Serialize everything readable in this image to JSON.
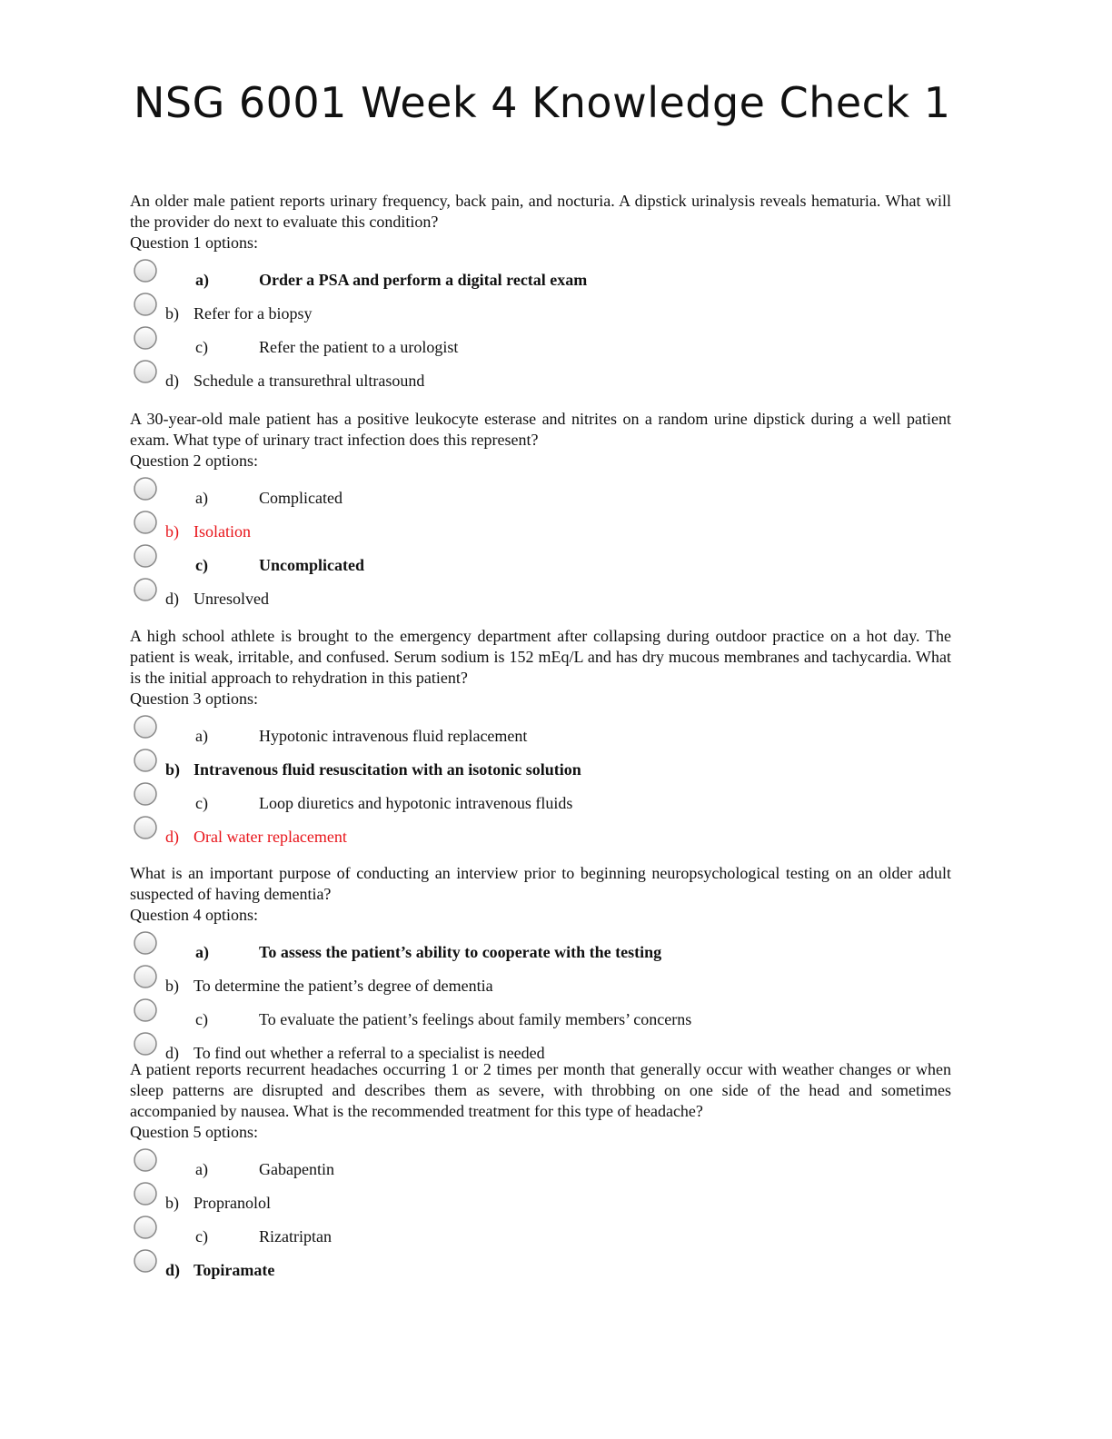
{
  "title": "NSG 6001 Week 4 Knowledge Check 1",
  "questions": [
    {
      "text": "An older male patient reports urinary frequency, back pain, and nocturia. A dipstick urinalysis reveals hematuria. What will the provider do next to evaluate this condition?",
      "options_label": "Question 1 options:",
      "options": [
        {
          "letter": "a)",
          "text": "Order a PSA and perform a digital rectal exam",
          "bold": true
        },
        {
          "letter": "b)",
          "text": "Refer for a biopsy"
        },
        {
          "letter": "c)",
          "text": "Refer the patient to a urologist"
        },
        {
          "letter": "d)",
          "text": "Schedule a transurethral ultrasound"
        }
      ]
    },
    {
      "text": "A 30-year-old male patient has a positive leukocyte esterase and nitrites on a random urine dipstick during a well patient exam. What type of urinary tract infection does this represent?",
      "options_label": "Question 2 options:",
      "options": [
        {
          "letter": "a)",
          "text": "Complicated"
        },
        {
          "letter": "b)",
          "text": "Isolation",
          "color": "#e8141a"
        },
        {
          "letter": "c)",
          "text": "Uncomplicated",
          "bold": true
        },
        {
          "letter": "d)",
          "text": "Unresolved"
        }
      ]
    },
    {
      "text": "A high school athlete is brought to the emergency department after collapsing during outdoor practice on a hot day. The patient is weak, irritable, and confused. Serum sodium is 152 mEq/L and has dry mucous membranes and tachycardia. What is the initial approach to rehydration in this patient?",
      "options_label": "Question 3 options:",
      "options": [
        {
          "letter": "a)",
          "text": "Hypotonic intravenous fluid replacement"
        },
        {
          "letter": "b)",
          "text": "Intravenous fluid resuscitation with an isotonic solution",
          "bold": true
        },
        {
          "letter": "c)",
          "text": "Loop diuretics and hypotonic intravenous fluids"
        },
        {
          "letter": "d)",
          "text": "Oral water replacement",
          "color": "#e8141a"
        }
      ]
    },
    {
      "text": "What is an important purpose of conducting an interview prior to beginning neuropsychological testing on an older adult suspected of having dementia?",
      "options_label": "Question 4 options:",
      "options": [
        {
          "letter": "a)",
          "text": "To assess the patient’s ability to cooperate with the testing",
          "bold": true
        },
        {
          "letter": "b)",
          "text": "To determine the patient’s degree of dementia"
        },
        {
          "letter": "c)",
          "text": "To evaluate the patient’s feelings about family members’ concerns"
        },
        {
          "letter": "d)",
          "text": "To find out whether a referral to a specialist is needed"
        }
      ]
    },
    {
      "text": "A patient reports recurrent headaches occurring 1 or 2 times per month that generally occur with weather changes or when sleep patterns are disrupted and describes them as severe, with throbbing on one side of the head and sometimes accompanied by nausea. What is the recommended treatment for this type of headache?",
      "options_label": "Question 5 options:",
      "options": [
        {
          "letter": "a)",
          "text": "Gabapentin"
        },
        {
          "letter": "b)",
          "text": "Propranolol"
        },
        {
          "letter": "c)",
          "text": "Rizatriptan"
        },
        {
          "letter": "d)",
          "text": "Topiramate",
          "bold": true
        }
      ]
    }
  ]
}
